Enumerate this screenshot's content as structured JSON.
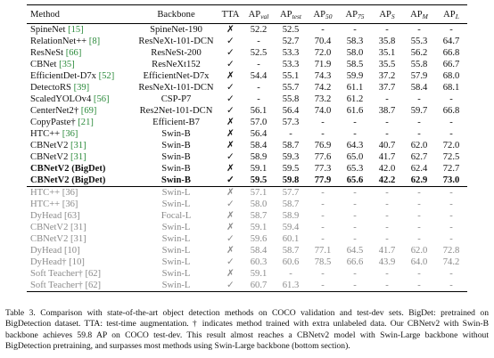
{
  "table": {
    "columns": [
      "Method",
      "Backbone",
      "TTA"
    ],
    "metric_columns": [
      {
        "main": "AP",
        "sub": "val"
      },
      {
        "main": "AP",
        "sub": "test"
      },
      {
        "main": "AP",
        "sub": "50"
      },
      {
        "main": "AP",
        "sub": "75"
      },
      {
        "main": "AP",
        "sub": "S"
      },
      {
        "main": "AP",
        "sub": "M"
      },
      {
        "main": "AP",
        "sub": "L"
      }
    ],
    "sections": [
      [
        {
          "method": "SpineNet",
          "ref": "[15]",
          "backbone": "SpineNet-190",
          "tta": "✗",
          "values": [
            "52.2",
            "52.5",
            "-",
            "-",
            "-",
            "-",
            "-"
          ]
        },
        {
          "method": "RelationNet++",
          "ref": "[8]",
          "backbone": "ResNeXt-101-DCN",
          "tta": "✓",
          "values": [
            "-",
            "52.7",
            "70.4",
            "58.3",
            "35.8",
            "55.3",
            "64.7"
          ]
        },
        {
          "method": "ResNeSt",
          "ref": "[66]",
          "backbone": "ResNeSt-200",
          "tta": "✓",
          "values": [
            "52.5",
            "53.3",
            "72.0",
            "58.0",
            "35.1",
            "56.2",
            "66.8"
          ]
        },
        {
          "method": "CBNet",
          "ref": "[35]",
          "backbone": "ResNeXt152",
          "tta": "✓",
          "values": [
            "-",
            "53.3",
            "71.9",
            "58.5",
            "35.5",
            "55.8",
            "66.7"
          ]
        },
        {
          "method": "EfficientDet-D7x",
          "ref": "[52]",
          "backbone": "EfficientNet-D7x",
          "tta": "✗",
          "values": [
            "54.4",
            "55.1",
            "74.3",
            "59.9",
            "37.2",
            "57.9",
            "68.0"
          ]
        },
        {
          "method": "DetectoRS",
          "ref": "[39]",
          "backbone": "ResNeXt-101-DCN",
          "tta": "✓",
          "values": [
            "-",
            "55.7",
            "74.2",
            "61.1",
            "37.7",
            "58.4",
            "68.1"
          ]
        },
        {
          "method": "ScaledYOLOv4",
          "ref": "[56]",
          "backbone": "CSP-P7",
          "tta": "✓",
          "values": [
            "-",
            "55.8",
            "73.2",
            "61.2",
            "-",
            "-",
            "-"
          ]
        },
        {
          "method": "CenterNet2†",
          "ref": "[69]",
          "backbone": "Res2Net-101-DCN",
          "tta": "✓",
          "values": [
            "56.1",
            "56.4",
            "74.0",
            "61.6",
            "38.7",
            "59.7",
            "66.8"
          ]
        },
        {
          "method": "CopyPaste†",
          "ref": "[21]",
          "backbone": "Efficient-B7",
          "tta": "✗",
          "values": [
            "57.0",
            "57.3",
            "-",
            "-",
            "-",
            "-",
            "-"
          ]
        },
        {
          "method": "HTC++",
          "ref": "[36]",
          "backbone": "Swin-B",
          "tta": "✗",
          "values": [
            "56.4",
            "-",
            "-",
            "-",
            "-",
            "-",
            "-"
          ]
        },
        {
          "method": "CBNetV2",
          "ref": "[31]",
          "backbone": "Swin-B",
          "tta": "✗",
          "values": [
            "58.4",
            "58.7",
            "76.9",
            "64.3",
            "40.7",
            "62.0",
            "72.0"
          ]
        },
        {
          "method": "CBNetV2",
          "ref": "[31]",
          "backbone": "Swin-B",
          "tta": "✓",
          "values": [
            "58.9",
            "59.3",
            "77.6",
            "65.0",
            "41.7",
            "62.7",
            "72.5"
          ]
        },
        {
          "method": "CBNetV2 (BigDet)",
          "backbone": "Swin-B",
          "tta": "✗",
          "values": [
            "59.1",
            "59.5",
            "77.3",
            "65.3",
            "42.0",
            "62.4",
            "72.7"
          ]
        },
        {
          "method": "CBNetV2 (BigDet)",
          "backbone": "Swin-B",
          "tta": "✓",
          "values": [
            "59.5",
            "59.8",
            "77.9",
            "65.6",
            "42.2",
            "62.9",
            "73.0"
          ]
        }
      ],
      [
        {
          "method": "HTC++",
          "ref": "[36]",
          "backbone": "Swin-L",
          "tta": "✗",
          "values": [
            "57.1",
            "57.7",
            "-",
            "-",
            "-",
            "-",
            "-"
          ]
        },
        {
          "method": "HTC++",
          "ref": "[36]",
          "backbone": "Swin-L",
          "tta": "✓",
          "values": [
            "58.0",
            "58.7",
            "-",
            "-",
            "-",
            "-",
            "-"
          ]
        },
        {
          "method": "DyHead",
          "ref": "[63]",
          "backbone": "Focal-L",
          "tta": "✗",
          "values": [
            "58.7",
            "58.9",
            "-",
            "-",
            "-",
            "-",
            "-"
          ]
        },
        {
          "method": "CBNetV2",
          "ref": "[31]",
          "backbone": "Swin-L",
          "tta": "✗",
          "values": [
            "59.1",
            "59.4",
            "-",
            "-",
            "-",
            "-",
            "-"
          ]
        },
        {
          "method": "CBNetV2",
          "ref": "[31]",
          "backbone": "Swin-L",
          "tta": "✓",
          "values": [
            "59.6",
            "60.1",
            "-",
            "-",
            "-",
            "-",
            "-"
          ]
        },
        {
          "method": "DyHead",
          "ref": "[10]",
          "backbone": "Swin-L",
          "tta": "✗",
          "values": [
            "58.4",
            "58.7",
            "77.1",
            "64.5",
            "41.7",
            "62.0",
            "72.8"
          ]
        },
        {
          "method": "DyHead†",
          "ref": "[10]",
          "backbone": "Swin-L",
          "tta": "✓",
          "values": [
            "60.3",
            "60.6",
            "78.5",
            "66.6",
            "43.9",
            "64.0",
            "74.2"
          ]
        },
        {
          "method": "Soft Teacher†",
          "ref": "[62]",
          "backbone": "Swin-L",
          "tta": "✗",
          "values": [
            "59.1",
            "-",
            "-",
            "-",
            "-",
            "-",
            "-"
          ]
        },
        {
          "method": "Soft Teacher†",
          "ref": "[62]",
          "backbone": "Swin-L",
          "tta": "✓",
          "values": [
            "60.7",
            "61.3",
            "-",
            "-",
            "-",
            "-",
            "-"
          ]
        }
      ]
    ]
  },
  "caption": {
    "label": "Table 3.",
    "text": "Comparison with state-of-the-art object detection methods on COCO validation and test-dev sets. BigDet: pretrained on BigDetection dataset. TTA: test-time augmentation. † indicates method trained with extra unlabeled data. Our CBNetv2 with Swin-B backbone achieves 59.8 AP on COCO test-dev. This result almost reaches a CBNetv2 model with Swin-Large backbone without BigDetection pretraining, and surpasses most methods using Swin-Large backbone (bottom section)."
  }
}
